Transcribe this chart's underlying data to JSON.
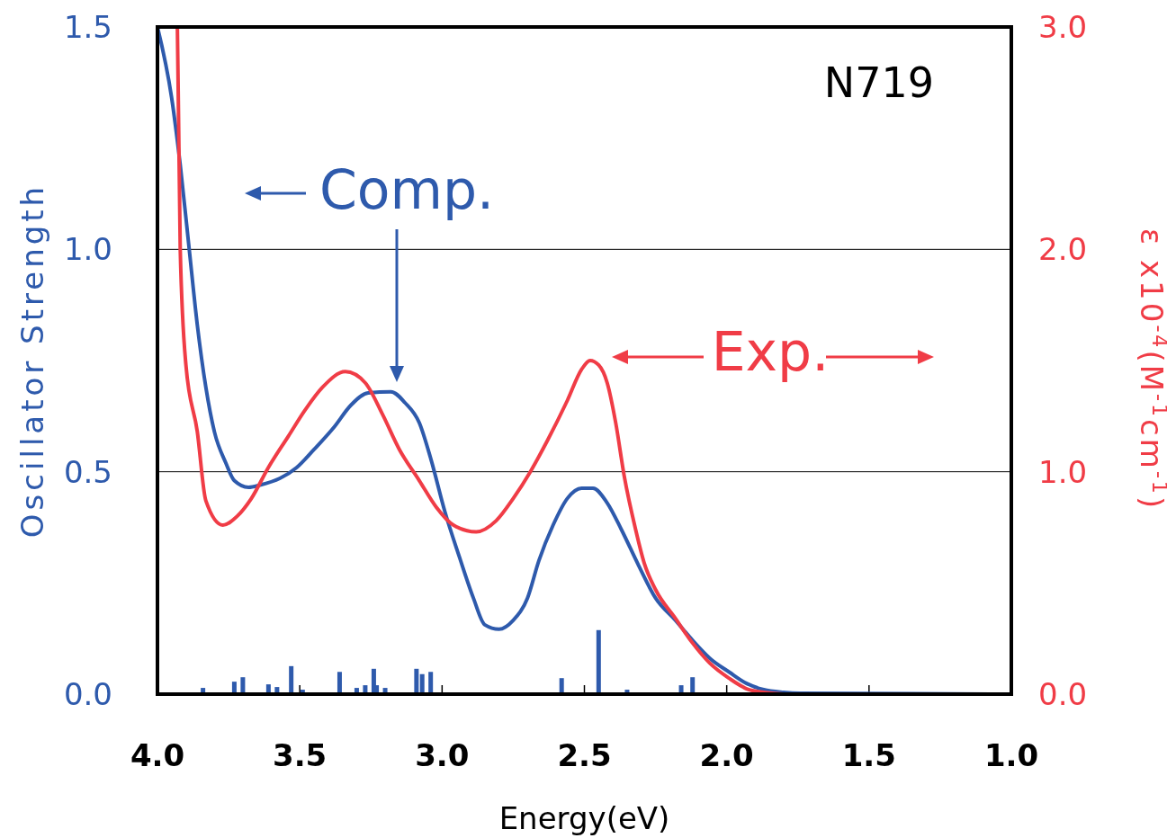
{
  "chart_data": {
    "type": "line",
    "xlabel": "Energy(eV)",
    "ylabel": "Oscillator Strength",
    "y2label": "ε x10$^{-4}$(M$^{-1}$cm$^{-1}$)",
    "xlim": [
      4.0,
      1.0
    ],
    "xticks": [
      {
        "value": 4,
        "label": "4.0"
      },
      3.5,
      {
        "value": 3,
        "label": "3.0"
      },
      2.5,
      {
        "value": 2,
        "label": "2.0"
      },
      1.5,
      {
        "value": 1,
        "label": "1.0"
      }
    ],
    "ylim": [
      0,
      1.5
    ],
    "yticks": [
      {
        "value": 0,
        "label": "0.0"
      },
      0.5,
      {
        "value": 1,
        "label": "1.0"
      },
      1.5
    ],
    "y2lim": [
      0,
      3.0
    ],
    "y2ticks": [
      {
        "value": 0,
        "label": "0.0"
      },
      {
        "value": 1,
        "label": "1.0"
      },
      {
        "value": 2,
        "label": "2.0"
      },
      {
        "value": 3,
        "label": "3.0"
      }
    ],
    "grid": "y",
    "legend": "top",
    "annotations": [
      "N719"
    ],
    "series": [
      {
        "name": "Comp.",
        "color": "#2e5aac",
        "x": [
          4.0,
          3.95,
          3.92,
          3.89,
          3.86,
          3.83,
          3.8,
          3.76,
          3.73,
          3.68,
          3.64,
          3.57,
          3.51,
          3.45,
          3.38,
          3.32,
          3.26,
          3.18,
          3.13,
          3.08,
          3.04,
          2.99,
          2.94,
          2.89,
          2.85,
          2.8,
          2.75,
          2.7,
          2.66,
          2.61,
          2.56,
          2.51,
          2.47,
          2.42,
          2.37,
          2.31,
          2.25,
          2.18,
          2.12,
          2.06,
          1.99,
          1.93,
          1.87,
          1.8,
          1.74,
          1.0
        ],
        "values": [
          1.5,
          1.34,
          1.19,
          1.01,
          0.83,
          0.69,
          0.59,
          0.52,
          0.48,
          0.465,
          0.47,
          0.485,
          0.51,
          0.55,
          0.6,
          0.65,
          0.677,
          0.68,
          0.655,
          0.61,
          0.53,
          0.41,
          0.31,
          0.216,
          0.156,
          0.146,
          0.166,
          0.216,
          0.3,
          0.38,
          0.44,
          0.463,
          0.463,
          0.43,
          0.37,
          0.29,
          0.216,
          0.166,
          0.121,
          0.081,
          0.049,
          0.024,
          0.01,
          0.004,
          0.002,
          0.0
        ]
      },
      {
        "name": "Exp.",
        "type": "line",
        "axis": "y2",
        "color": "#f03c46",
        "x": [
          3.93,
          3.92,
          3.9,
          3.86,
          3.83,
          3.77,
          3.72,
          3.67,
          3.61,
          3.54,
          3.48,
          3.42,
          3.34,
          3.27,
          3.21,
          3.15,
          3.08,
          3.02,
          2.96,
          2.88,
          2.81,
          2.75,
          2.69,
          2.63,
          2.56,
          2.51,
          2.48,
          2.45,
          2.42,
          2.39,
          2.36,
          2.32,
          2.29,
          2.25,
          2.18,
          2.12,
          2.06,
          1.99,
          1.93,
          1.87,
          1.8
        ],
        "values": [
          3.0,
          2.0,
          1.48,
          1.18,
          0.87,
          0.76,
          0.8,
          0.88,
          1.02,
          1.16,
          1.28,
          1.38,
          1.45,
          1.4,
          1.26,
          1.1,
          0.96,
          0.84,
          0.76,
          0.73,
          0.78,
          0.88,
          1.0,
          1.14,
          1.32,
          1.46,
          1.5,
          1.48,
          1.4,
          1.22,
          0.98,
          0.74,
          0.59,
          0.47,
          0.34,
          0.23,
          0.14,
          0.07,
          0.024,
          0.008,
          0.0
        ]
      },
      {
        "type": "bar",
        "color": "#2e5aac",
        "x": [
          3.84,
          3.73,
          3.7,
          3.61,
          3.58,
          3.53,
          3.49,
          3.36,
          3.3,
          3.27,
          3.24,
          3.23,
          3.2,
          3.09,
          3.07,
          3.04,
          2.58,
          2.45,
          2.35,
          2.16,
          2.12
        ],
        "values": [
          0.014,
          0.028,
          0.038,
          0.022,
          0.016,
          0.063,
          0.01,
          0.05,
          0.014,
          0.02,
          0.057,
          0.02,
          0.014,
          0.057,
          0.045,
          0.05,
          0.036,
          0.144,
          0.01,
          0.02,
          0.038
        ]
      }
    ]
  }
}
